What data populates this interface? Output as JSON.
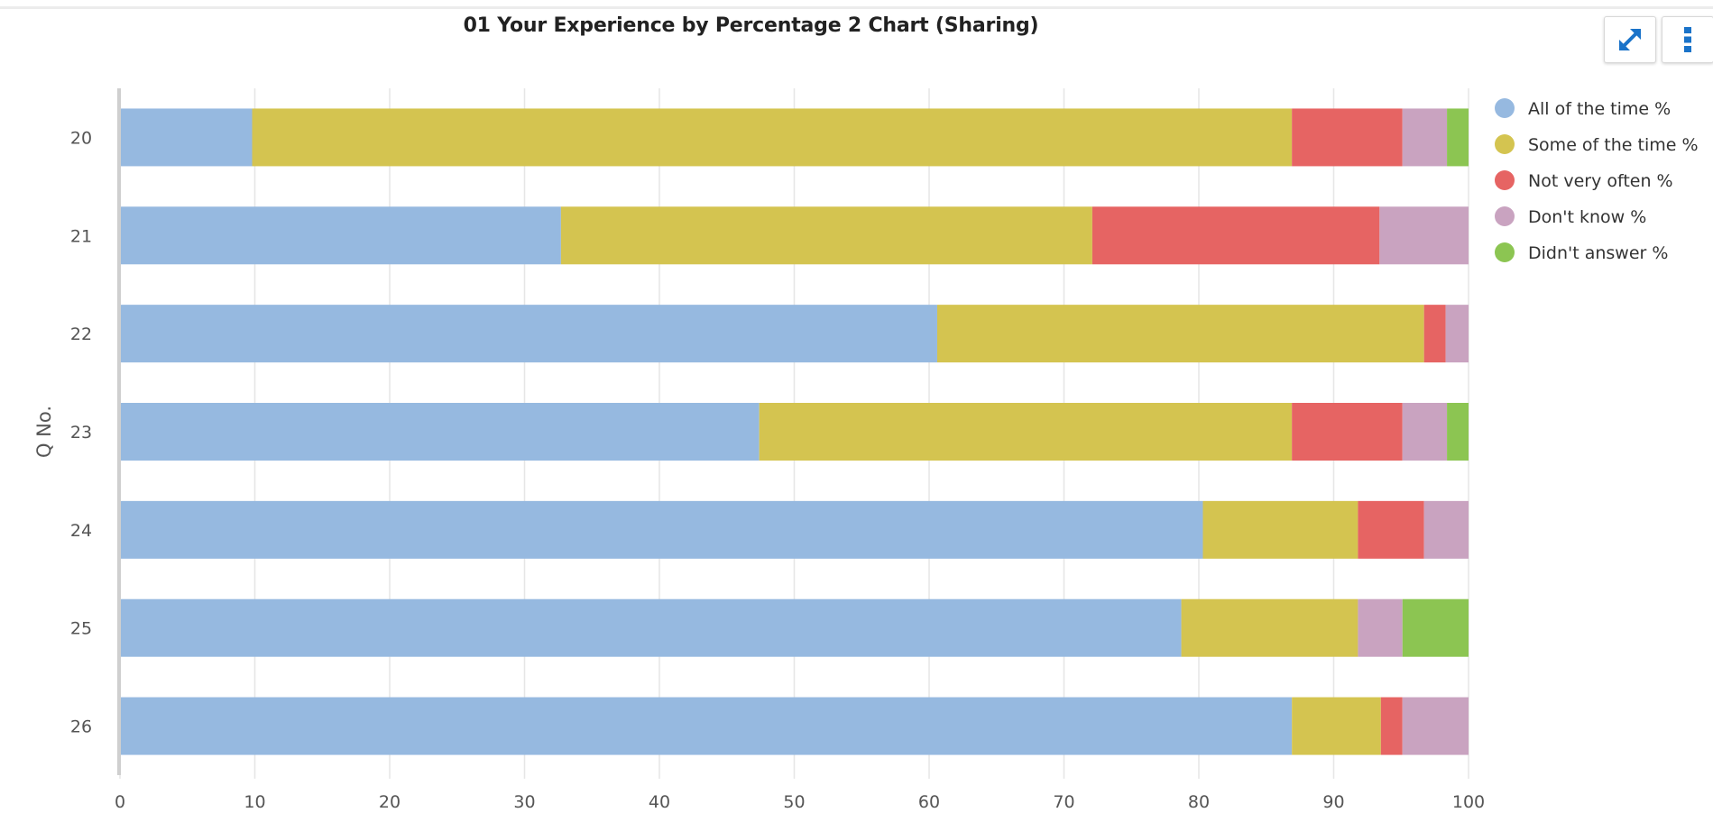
{
  "title": "01 Your Experience by Percentage 2 Chart (Sharing)",
  "toolbar": {
    "expand_icon": "expand-arrows-icon",
    "menu_icon": "vertical-dots-icon"
  },
  "chart_data": {
    "type": "bar",
    "orientation": "horizontal",
    "stacked": true,
    "title": "01 Your Experience by Percentage 2 Chart (Sharing)",
    "ylabel": "Q No.",
    "xlabel": "",
    "categories": [
      "20",
      "21",
      "22",
      "23",
      "24",
      "25",
      "26"
    ],
    "xlim": [
      0,
      100
    ],
    "xticks": [
      0,
      10,
      20,
      30,
      40,
      50,
      60,
      70,
      80,
      90,
      100
    ],
    "grid": true,
    "legend": "right",
    "series": [
      {
        "name": "All of the time %",
        "color": "#96b9e0",
        "values": [
          9.8,
          32.7,
          60.6,
          47.4,
          80.3,
          78.7,
          86.9
        ]
      },
      {
        "name": "Some of the time %",
        "color": "#d4c450",
        "values": [
          77.1,
          39.4,
          36.1,
          39.5,
          11.5,
          13.1,
          6.6
        ]
      },
      {
        "name": "Not very often %",
        "color": "#e66463",
        "values": [
          8.2,
          21.3,
          1.6,
          8.2,
          4.9,
          0,
          1.6
        ]
      },
      {
        "name": "Don't know %",
        "color": "#c9a3c0",
        "values": [
          3.3,
          6.6,
          1.7,
          3.3,
          3.3,
          3.3,
          4.9
        ]
      },
      {
        "name": "Didn't answer %",
        "color": "#8cc552",
        "values": [
          1.6,
          0,
          0,
          1.6,
          0,
          4.9,
          0
        ]
      }
    ]
  }
}
